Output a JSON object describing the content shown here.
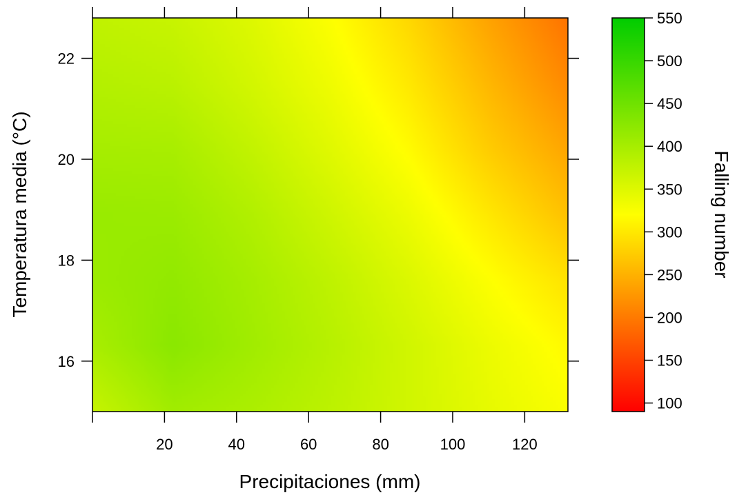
{
  "chart_data": {
    "type": "heatmap",
    "xlabel": "Precipitaciones (mm)",
    "ylabel": "Temperatura media (°C)",
    "colorbar_label": "Falling number",
    "x_range": [
      0,
      132
    ],
    "y_range": [
      15,
      22.8
    ],
    "z_range": [
      90,
      550
    ],
    "x_ticks": [
      20,
      40,
      60,
      80,
      100,
      120
    ],
    "x_ticks_unlabeled": [
      0
    ],
    "y_ticks": [
      16,
      18,
      20,
      22
    ],
    "colorbar_ticks": [
      100,
      150,
      200,
      250,
      300,
      350,
      400,
      450,
      500,
      550
    ],
    "colorscale": [
      {
        "value": 90,
        "color": "#ff0000"
      },
      {
        "value": 320,
        "color": "#ffff00"
      },
      {
        "value": 550,
        "color": "#00cc00"
      }
    ],
    "surface_samples": {
      "x": [
        0,
        22,
        44,
        66,
        88,
        110,
        132
      ],
      "y": [
        15,
        16.3,
        17.6,
        18.9,
        20.2,
        21.5,
        22.8
      ],
      "z": [
        [
          372,
          405,
          395,
          380,
          362,
          342,
          325
        ],
        [
          398,
          425,
          405,
          385,
          362,
          337,
          315
        ],
        [
          410,
          418,
          400,
          378,
          352,
          322,
          295
        ],
        [
          412,
          410,
          390,
          364,
          336,
          300,
          265
        ],
        [
          400,
          398,
          375,
          348,
          317,
          275,
          240
        ],
        [
          388,
          382,
          360,
          334,
          300,
          256,
          215
        ],
        [
          377,
          370,
          350,
          322,
          285,
          238,
          195
        ]
      ]
    }
  }
}
